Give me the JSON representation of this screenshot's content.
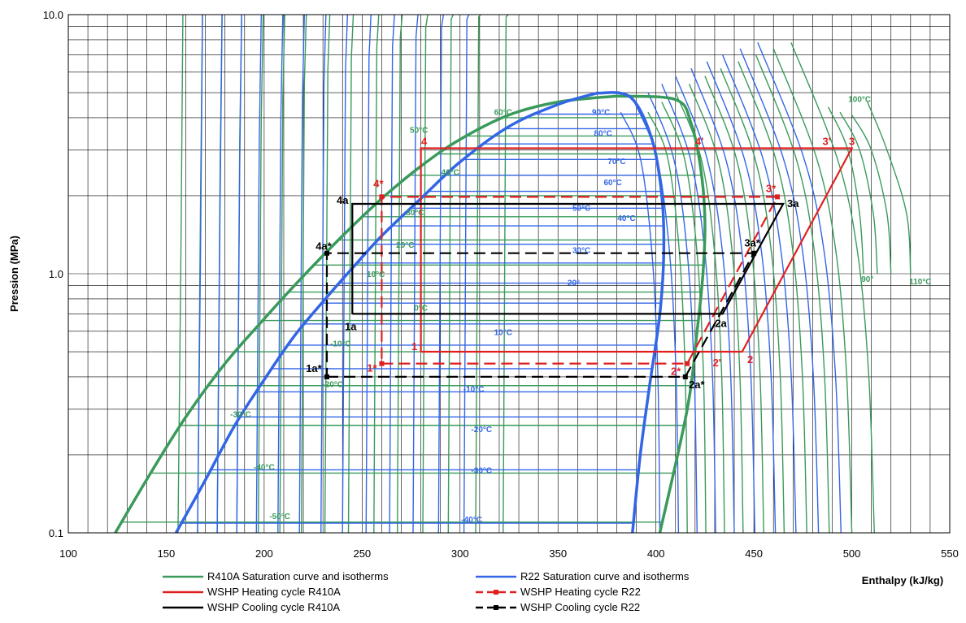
{
  "chart_data": {
    "type": "line",
    "xlabel": "Enthalpy (kJ/kg)",
    "ylabel": "Pression (MPa)",
    "xlim": [
      100,
      550
    ],
    "ylim": [
      0.1,
      10.0
    ],
    "y_scale": "log",
    "grid": true,
    "legend_placement": "bottom",
    "x_ticks": [
      "100",
      "150",
      "200",
      "250",
      "300",
      "350",
      "400",
      "450",
      "500",
      "550"
    ],
    "y_ticks": [
      {
        "value": 0.1,
        "label": "0.1"
      },
      {
        "value": 1.0,
        "label": "1.0"
      },
      {
        "value": 10.0,
        "label": "10.0"
      }
    ],
    "colors": {
      "r410a": "#3a9a5b",
      "r22": "#3366e6",
      "heating": "#e02020",
      "cooling": "#000000"
    },
    "series": [
      {
        "name": "R410A Saturation curve and isotherms",
        "color": "#3a9a5b",
        "style": "solid",
        "saturation_liquid": [
          [
            124,
            0.1
          ],
          [
            142,
            0.17
          ],
          [
            160,
            0.28
          ],
          [
            180,
            0.45
          ],
          [
            200,
            0.67
          ],
          [
            220,
            0.98
          ],
          [
            240,
            1.4
          ],
          [
            260,
            1.95
          ],
          [
            280,
            2.6
          ],
          [
            300,
            3.3
          ],
          [
            325,
            4.1
          ],
          [
            350,
            4.6
          ],
          [
            380,
            4.85
          ]
        ],
        "saturation_vapor": [
          [
            380,
            4.85
          ],
          [
            410,
            4.7
          ],
          [
            418,
            3.8
          ],
          [
            423,
            2.5
          ],
          [
            425,
            1.6
          ],
          [
            424,
            1.0
          ],
          [
            421,
            0.6
          ],
          [
            416,
            0.3
          ],
          [
            402,
            0.1
          ]
        ],
        "isotherm_labels": [
          {
            "text": "-50°C",
            "h": 208,
            "p": 0.113
          },
          {
            "text": "-40°C",
            "h": 200,
            "p": 0.175
          },
          {
            "text": "-30°C",
            "h": 188,
            "p": 0.28
          },
          {
            "text": "-20°C",
            "h": 235,
            "p": 0.365
          },
          {
            "text": "-10°C",
            "h": 239,
            "p": 0.525
          },
          {
            "text": "0°C",
            "h": 280,
            "p": 0.72
          },
          {
            "text": "10°C",
            "h": 257,
            "p": 0.97
          },
          {
            "text": "20°C",
            "h": 272,
            "p": 1.26
          },
          {
            "text": "30°C",
            "h": 277,
            "p": 1.68
          },
          {
            "text": "40°C",
            "h": 295,
            "p": 2.4
          },
          {
            "text": "50°C",
            "h": 279,
            "p": 3.5
          },
          {
            "text": "60°C",
            "h": 322,
            "p": 4.1
          },
          {
            "text": "90°",
            "h": 508,
            "p": 0.93
          },
          {
            "text": "100°C",
            "h": 504,
            "p": 4.6
          },
          {
            "text": "110°C",
            "h": 535,
            "p": 0.91
          }
        ]
      },
      {
        "name": "R22 Saturation curve and isotherms",
        "color": "#3366e6",
        "style": "solid",
        "saturation_liquid": [
          [
            155,
            0.1
          ],
          [
            170,
            0.16
          ],
          [
            185,
            0.26
          ],
          [
            200,
            0.39
          ],
          [
            215,
            0.57
          ],
          [
            230,
            0.78
          ],
          [
            245,
            1.05
          ],
          [
            260,
            1.4
          ],
          [
            280,
            1.95
          ],
          [
            300,
            2.7
          ],
          [
            325,
            3.7
          ],
          [
            350,
            4.5
          ],
          [
            370,
            4.98
          ]
        ],
        "saturation_vapor": [
          [
            370,
            4.98
          ],
          [
            387,
            4.8
          ],
          [
            398,
            3.3
          ],
          [
            403,
            2.0
          ],
          [
            404,
            1.2
          ],
          [
            402,
            0.7
          ],
          [
            397,
            0.38
          ],
          [
            392,
            0.2
          ],
          [
            388,
            0.1
          ]
        ],
        "isotherm_labels": [
          {
            "text": "-40°C",
            "h": 306,
            "p": 0.11
          },
          {
            "text": "-30°C",
            "h": 311,
            "p": 0.17
          },
          {
            "text": "-20°C",
            "h": 311,
            "p": 0.245
          },
          {
            "text": "-10°C",
            "h": 307,
            "p": 0.35
          },
          {
            "text": "10°C",
            "h": 322,
            "p": 0.58
          },
          {
            "text": "20°",
            "h": 358,
            "p": 0.9
          },
          {
            "text": "30°C",
            "h": 362,
            "p": 1.2
          },
          {
            "text": "40°C",
            "h": 385,
            "p": 1.6
          },
          {
            "text": "50°C",
            "h": 362,
            "p": 1.75
          },
          {
            "text": "60°C",
            "h": 378,
            "p": 2.2
          },
          {
            "text": "70°C",
            "h": 380,
            "p": 2.65
          },
          {
            "text": "80°C",
            "h": 373,
            "p": 3.4
          },
          {
            "text": "90°C",
            "h": 372,
            "p": 4.1
          }
        ]
      },
      {
        "name": "WSHP Heating cycle R410A",
        "color": "#e02020",
        "style": "solid",
        "points": [
          {
            "label": "1",
            "h": 280,
            "p": 0.5
          },
          {
            "label": "2",
            "h": 444,
            "p": 0.5
          },
          {
            "label": "3",
            "h": 500,
            "p": 3.05
          },
          {
            "label": "4",
            "h": 280,
            "p": 3.05
          }
        ],
        "aux_points": [
          {
            "label": "2'",
            "h": 432,
            "p": 0.5
          },
          {
            "label": "3'",
            "h": 488,
            "p": 3.05
          },
          {
            "label": "4'",
            "h": 423,
            "p": 3.05
          }
        ]
      },
      {
        "name": "WSHP Heating cycle R22",
        "color": "#e02020",
        "style": "dashed",
        "points": [
          {
            "label": "1*",
            "h": 260,
            "p": 0.45
          },
          {
            "label": "2*",
            "h": 416,
            "p": 0.45
          },
          {
            "label": "3*",
            "h": 462,
            "p": 1.98
          },
          {
            "label": "4*",
            "h": 260,
            "p": 1.98
          }
        ]
      },
      {
        "name": "WSHP Cooling cycle R410A",
        "color": "#000000",
        "style": "solid",
        "points": [
          {
            "label": "1a",
            "h": 245,
            "p": 0.7
          },
          {
            "label": "2a",
            "h": 434,
            "p": 0.7
          },
          {
            "label": "3a",
            "h": 465,
            "p": 1.86
          },
          {
            "label": "4a",
            "h": 245,
            "p": 1.86
          }
        ]
      },
      {
        "name": "WSHP Cooling cycle R22",
        "color": "#000000",
        "style": "dashed",
        "points": [
          {
            "label": "1a*",
            "h": 232,
            "p": 0.4
          },
          {
            "label": "2a*",
            "h": 415,
            "p": 0.4
          },
          {
            "label": "3a*",
            "h": 450,
            "p": 1.2
          },
          {
            "label": "4a*",
            "h": 232,
            "p": 1.2
          }
        ]
      }
    ]
  }
}
